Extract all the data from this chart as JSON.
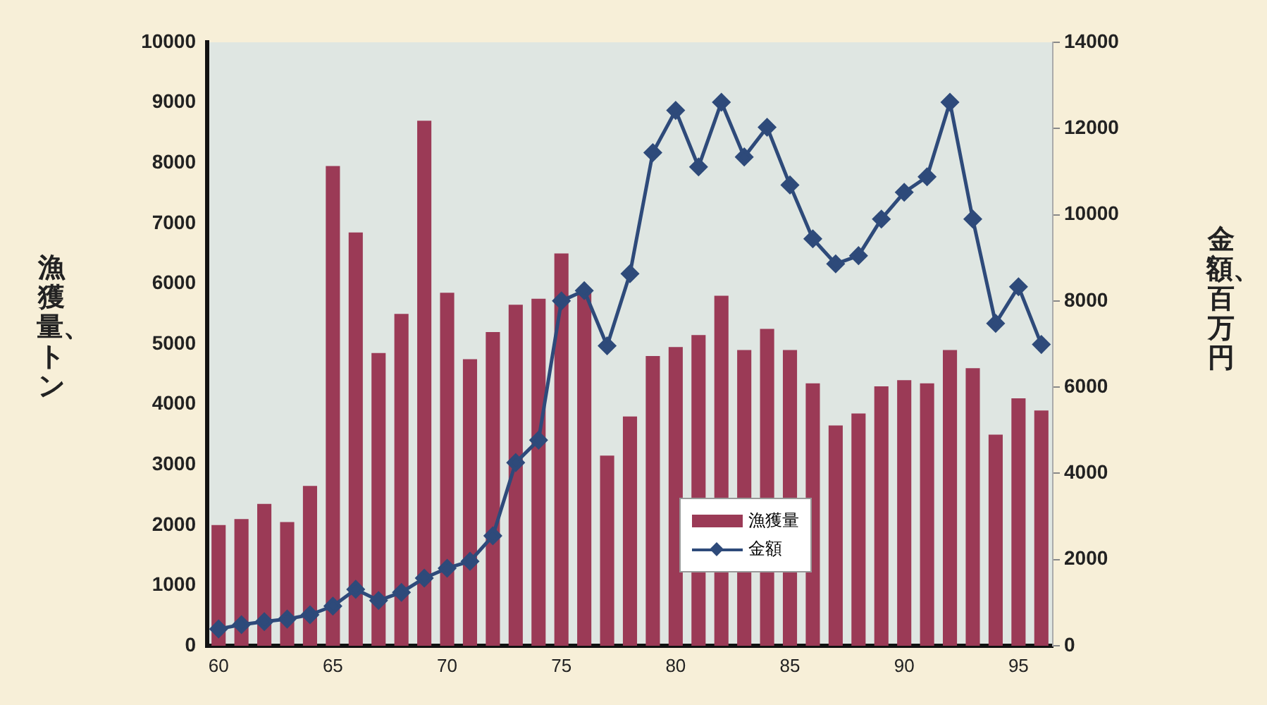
{
  "chart_data": {
    "type": "bar",
    "categories": [
      "60",
      null,
      null,
      null,
      null,
      "65",
      null,
      null,
      null,
      null,
      "70",
      null,
      null,
      null,
      null,
      "75",
      null,
      null,
      null,
      null,
      "80",
      null,
      null,
      null,
      null,
      "85",
      null,
      null,
      null,
      null,
      "90",
      null,
      null,
      null,
      null,
      "95",
      null
    ],
    "ylabel": "漁獲量、トン",
    "y2label": "金額、百万円",
    "series": [
      {
        "name": "漁獲量",
        "color": "#9b3a56",
        "values": [
          2000,
          2100,
          2350,
          2050,
          2650,
          7950,
          6850,
          4850,
          5500,
          8700,
          5850,
          4750,
          5200,
          5650,
          5750,
          6500,
          5900,
          3150,
          3800,
          4800,
          4950,
          5150,
          5800,
          4900,
          5250,
          4900,
          4350,
          3650,
          3850,
          4300,
          4400,
          4350,
          4900,
          4600,
          3500,
          4100,
          3900
        ]
      },
      {
        "name": "金額",
        "type": "line",
        "axis": "y2",
        "color": "#2e4a7a",
        "marker": "diamond",
        "values": [
          390,
          490,
          560,
          620,
          720,
          920,
          1310,
          1050,
          1240,
          1570,
          1800,
          1960,
          2550,
          4250,
          4770,
          8000,
          8240,
          6960,
          8630,
          11440,
          12420,
          11110,
          12610,
          11340,
          12030,
          10690,
          9440,
          8860,
          9050,
          9900,
          10520,
          10880,
          12610,
          9900,
          7480,
          8330,
          6990
        ]
      }
    ],
    "ylim": [
      0,
      10000
    ],
    "yticks": [
      0,
      1000,
      2000,
      3000,
      4000,
      5000,
      6000,
      7000,
      8000,
      9000,
      10000
    ],
    "y2lim": [
      0,
      14000
    ],
    "y2ticks": [
      0,
      2000,
      4000,
      6000,
      8000,
      10000,
      12000,
      14000
    ],
    "legend": "bottom right",
    "grid": false
  }
}
